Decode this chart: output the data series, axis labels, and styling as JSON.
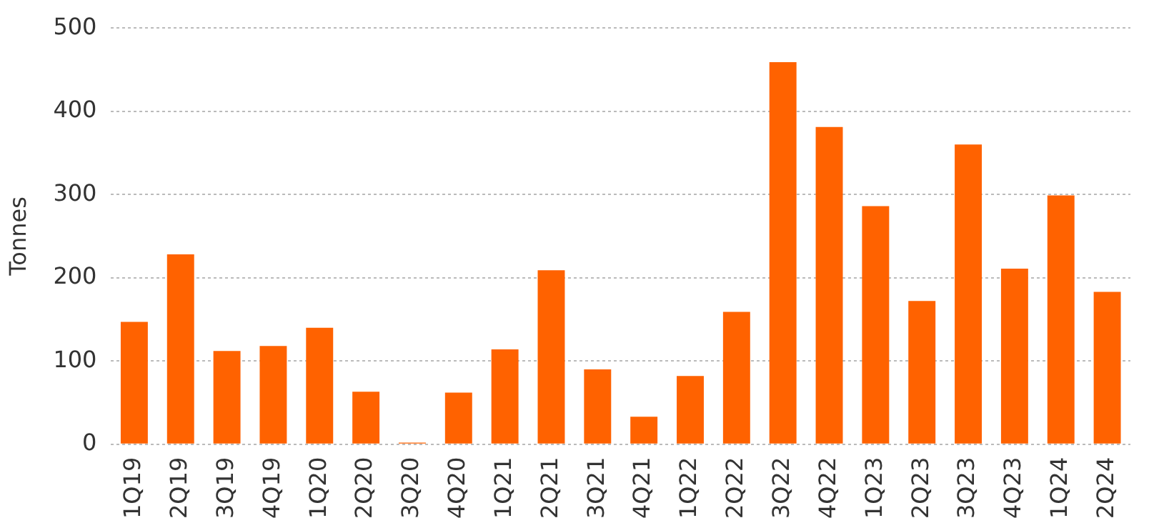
{
  "chart_data": {
    "type": "bar",
    "ylabel": "Tonnes",
    "categories": [
      "1Q19",
      "2Q19",
      "3Q19",
      "4Q19",
      "1Q20",
      "2Q20",
      "3Q20",
      "4Q20",
      "1Q21",
      "2Q21",
      "3Q21",
      "4Q21",
      "1Q22",
      "2Q22",
      "3Q22",
      "4Q22",
      "1Q23",
      "2Q23",
      "3Q23",
      "4Q23",
      "1Q24",
      "2Q24"
    ],
    "values": [
      147,
      228,
      112,
      118,
      140,
      63,
      2,
      62,
      114,
      209,
      90,
      33,
      82,
      159,
      459,
      381,
      286,
      172,
      360,
      211,
      299,
      183
    ],
    "color": "#ff6200",
    "ylim": [
      0,
      500
    ],
    "yticks": [
      0,
      100,
      200,
      300,
      400,
      500
    ],
    "grid": "y",
    "legend": false
  }
}
